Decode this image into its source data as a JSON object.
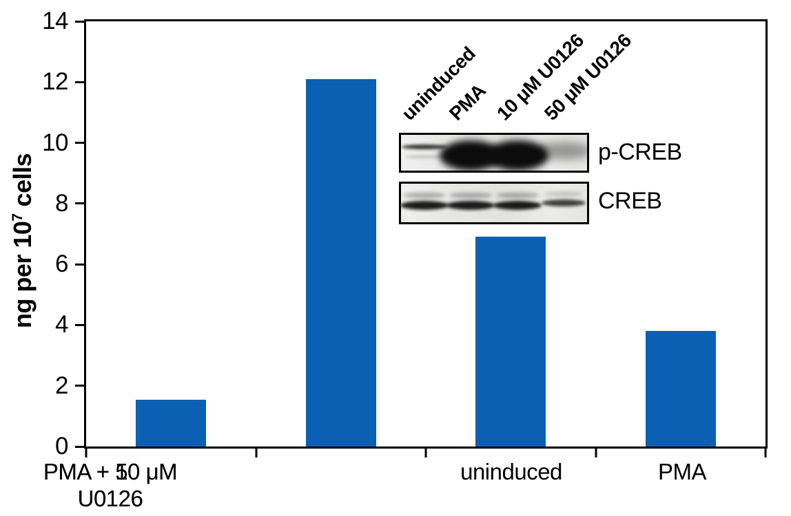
{
  "chart_data": {
    "type": "bar",
    "title": "",
    "xlabel": "",
    "ylabel": "ng per 10⁷ cells",
    "ylabel_main": "ng per 10",
    "ylabel_sup": "7",
    "ylabel_tail": " cells",
    "categories": [
      "uninduced",
      "PMA",
      "PMA + 10 μM\nU0126",
      "PMA + 50 μM\nU0126"
    ],
    "values": [
      1.55,
      12.1,
      6.9,
      3.8
    ],
    "ylim": [
      0,
      14
    ],
    "yticks": [
      0,
      2,
      4,
      6,
      8,
      10,
      12,
      14
    ],
    "bar_color": "#0b60b3",
    "axis_color": "#000000",
    "grid": false,
    "legend_position": "none"
  },
  "inset_blot": {
    "lane_labels": [
      "uninduced",
      "PMA",
      "10 μM U0126",
      "50 μM U0126"
    ],
    "rows": [
      {
        "label": "p-CREB",
        "band_intensities": [
          "faint",
          "very-strong",
          "very-strong",
          "weak"
        ]
      },
      {
        "label": "CREB",
        "band_intensities": [
          "strong",
          "strong",
          "strong",
          "medium"
        ]
      }
    ]
  }
}
